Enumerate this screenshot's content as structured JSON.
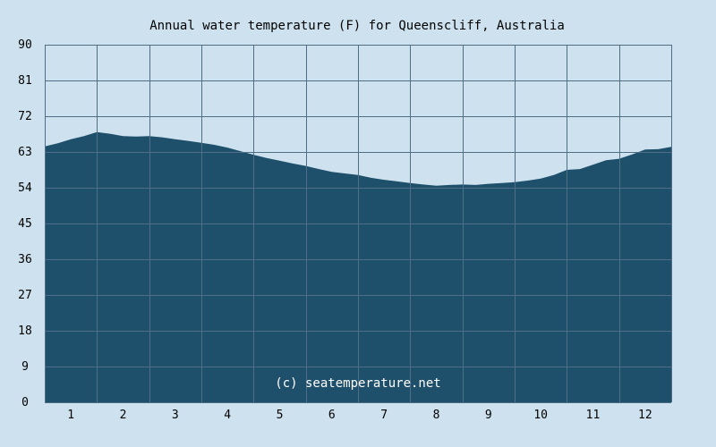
{
  "chart_data": {
    "type": "area",
    "title": "Annual water temperature (F) for Queenscliff, Australia",
    "xlabel": "",
    "ylabel": "",
    "x_tick_labels": [
      "1",
      "2",
      "3",
      "4",
      "5",
      "6",
      "7",
      "8",
      "9",
      "10",
      "11",
      "12"
    ],
    "y_tick_labels": [
      "0",
      "9",
      "18",
      "27",
      "36",
      "45",
      "54",
      "63",
      "72",
      "81",
      "90"
    ],
    "ylim": [
      0,
      90
    ],
    "xlim": [
      0.5,
      12.5
    ],
    "grid": true,
    "x": [
      0.5,
      0.75,
      1.0,
      1.25,
      1.5,
      1.75,
      2.0,
      2.25,
      2.5,
      2.75,
      3.0,
      3.25,
      3.5,
      3.75,
      4.0,
      4.25,
      4.5,
      4.75,
      5.0,
      5.25,
      5.5,
      5.75,
      6.0,
      6.25,
      6.5,
      6.75,
      7.0,
      7.25,
      7.5,
      7.75,
      8.0,
      8.25,
      8.5,
      8.75,
      9.0,
      9.25,
      9.5,
      9.75,
      10.0,
      10.25,
      10.5,
      10.75,
      11.0,
      11.25,
      11.5,
      11.75,
      12.0,
      12.25,
      12.5
    ],
    "values": [
      64.4,
      65.2,
      66.2,
      67.0,
      68.0,
      67.6,
      67.0,
      66.9,
      67.0,
      66.7,
      66.2,
      65.8,
      65.3,
      64.8,
      64.1,
      63.2,
      62.3,
      61.5,
      60.8,
      60.1,
      59.5,
      58.7,
      58.0,
      57.6,
      57.2,
      56.5,
      56.0,
      55.6,
      55.2,
      54.8,
      54.5,
      54.7,
      54.8,
      54.7,
      55.0,
      55.2,
      55.4,
      55.8,
      56.3,
      57.2,
      58.5,
      58.7,
      59.8,
      60.9,
      61.3,
      62.4,
      63.6,
      63.7,
      64.3
    ],
    "area_color": "#1e4f6b",
    "background_color": "#cde2ee",
    "grid_color": "#4f6f86",
    "watermark": "(c) seatemperature.net"
  }
}
